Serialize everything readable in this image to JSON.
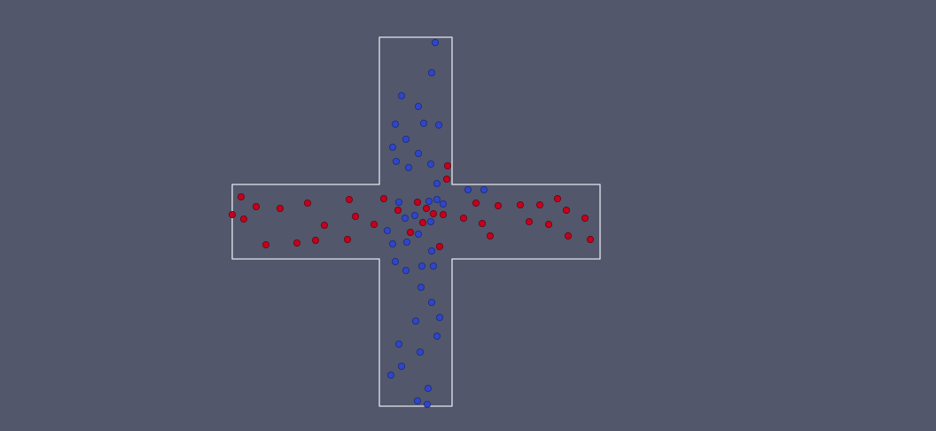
{
  "scene": {
    "background_color": "#52576b",
    "outline_color": "#e6e6ee",
    "groups": [
      {
        "name": "blue",
        "color": "#2f46c8",
        "stroke": "#1a2a80",
        "count": 44
      },
      {
        "name": "red",
        "color": "#c4001e",
        "stroke": "#6a0010",
        "count": 39
      }
    ]
  }
}
